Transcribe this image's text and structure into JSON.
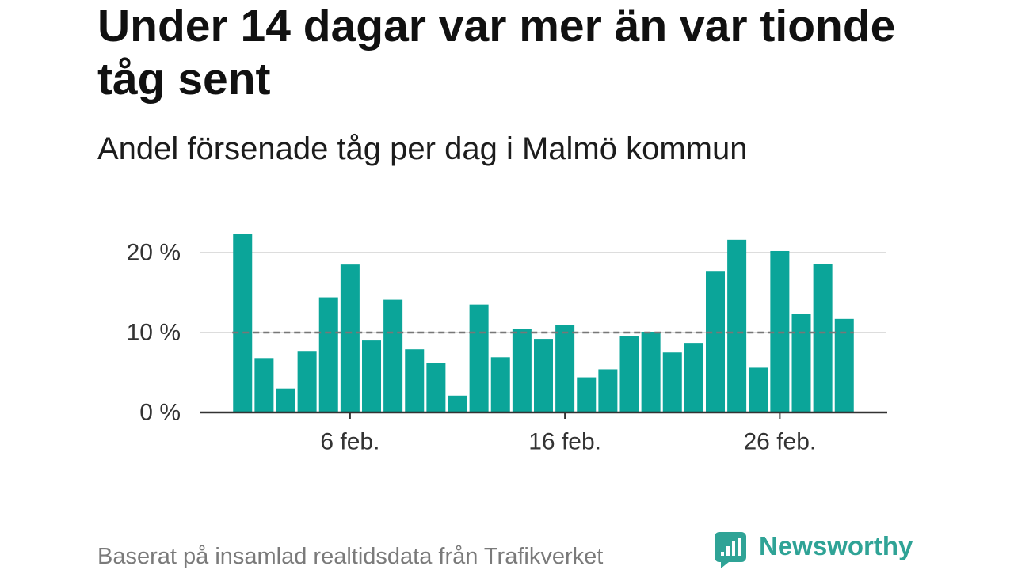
{
  "chart_data": {
    "type": "bar",
    "title": "Under 14 dagar var mer än var tionde tåg sent",
    "subtitle": "Andel försenade tåg per dag i Malmö kommun",
    "x": [
      1,
      2,
      3,
      4,
      5,
      6,
      7,
      8,
      9,
      10,
      11,
      12,
      13,
      14,
      15,
      16,
      17,
      18,
      19,
      20,
      21,
      22,
      23,
      24,
      25,
      26,
      27,
      28,
      29
    ],
    "values": [
      22.3,
      6.8,
      3.0,
      7.7,
      14.4,
      18.5,
      9.0,
      14.1,
      7.9,
      6.2,
      2.1,
      13.5,
      6.9,
      10.4,
      9.2,
      10.9,
      4.4,
      5.4,
      9.6,
      10.1,
      7.5,
      8.7,
      17.7,
      21.6,
      5.6,
      20.2,
      12.3,
      18.6,
      11.7
    ],
    "xticks": [
      6,
      16,
      26
    ],
    "xtick_labels": [
      "6 feb.",
      "16 feb.",
      "26 feb."
    ],
    "yticks": [
      0,
      10,
      20
    ],
    "ytick_labels": [
      "0 %",
      "10 %",
      "20 %"
    ],
    "xlim": [
      -1,
      31
    ],
    "ylim": [
      0,
      23
    ],
    "grid": true,
    "reference_line": {
      "value": 10,
      "dashed": true
    },
    "colors": {
      "bars": "#0ba599",
      "reference_line": "#777777",
      "grid": "#dddddd",
      "axis": "#333333"
    }
  },
  "footer": {
    "source": "Baserat på insamlad realtidsdata från Trafikverket"
  },
  "logo": {
    "text": "Newsworthy",
    "icon": "newsworthy-chart-bubble-icon",
    "color": "#2fa396"
  }
}
